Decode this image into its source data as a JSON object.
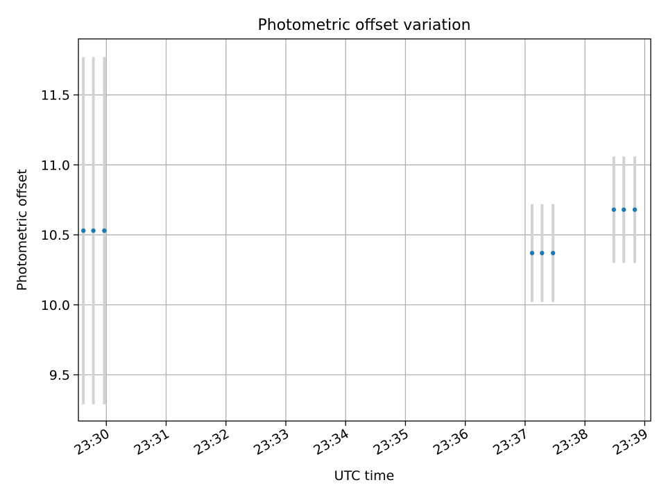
{
  "chart_data": {
    "type": "scatter",
    "title": "Photometric offset variation",
    "xlabel": "UTC time",
    "ylabel": "Photometric offset",
    "x_ticks": [
      "23:30",
      "23:31",
      "23:32",
      "23:33",
      "23:34",
      "23:35",
      "23:36",
      "23:37",
      "23:38",
      "23:39"
    ],
    "y_ticks": [
      "9.5",
      "10.0",
      "10.5",
      "11.0",
      "11.5"
    ],
    "xlim": [
      "23:29:32",
      "23:39:06"
    ],
    "ylim": [
      9.17,
      11.9
    ],
    "grid": true,
    "series": [
      {
        "x": [
          "23:29:37",
          "23:29:47",
          "23:29:58",
          "23:37:07",
          "23:37:17",
          "23:37:28",
          "23:38:29",
          "23:38:39",
          "23:38:50"
        ],
        "y": [
          10.53,
          10.53,
          10.53,
          10.37,
          10.37,
          10.37,
          10.68,
          10.68,
          10.68
        ],
        "yerr": [
          1.24,
          1.24,
          1.24,
          0.35,
          0.35,
          0.35,
          0.38,
          0.38,
          0.38
        ],
        "color": "#1f77b4",
        "errorbar_color": "#d3d3d3"
      }
    ]
  }
}
